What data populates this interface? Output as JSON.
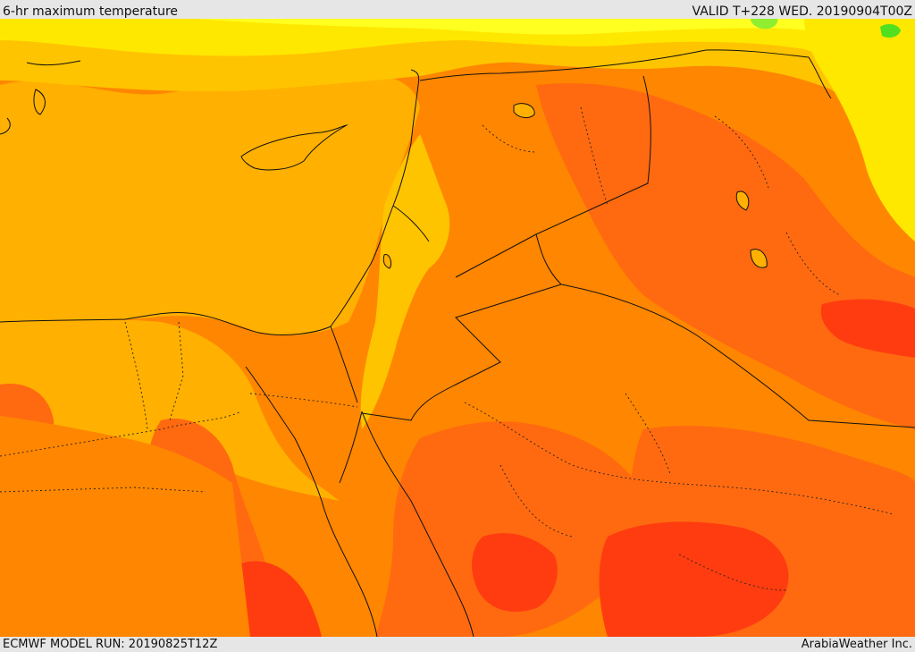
{
  "header": {
    "title": "6-hr maximum temperature",
    "valid": "VALID T+228 WED. 20190904T00Z"
  },
  "footer": {
    "model_run": "ECMWF MODEL RUN: 20190825T12Z",
    "provider": "ArabiaWeather Inc."
  },
  "map": {
    "colors": {
      "sea": "#ffb000",
      "hot": "#ff8600",
      "hotter": "#ff6a10",
      "hottest": "#ff3c10",
      "warm": "#ffc400",
      "mild": "#ffe800",
      "cool": "#ffff20",
      "cold": "#50e020"
    }
  }
}
